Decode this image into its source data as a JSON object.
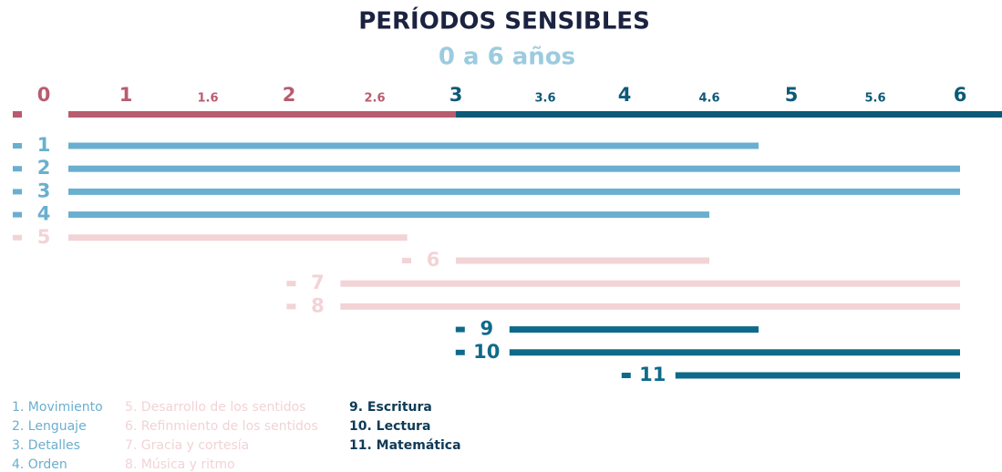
{
  "chart_data": {
    "type": "range-bar",
    "title": "PERÍODOS SENSIBLES",
    "subtitle": "0 a 6 años",
    "xlim": [
      0,
      6
    ],
    "xticks": [
      0,
      1,
      {
        "value": 1.5,
        "label": "1.6"
      },
      2,
      {
        "value": 2.5,
        "label": "2.6"
      },
      3,
      {
        "value": 3.5,
        "label": "3.6"
      },
      4,
      {
        "value": 4.5,
        "label": "4.6"
      },
      5,
      {
        "value": 5.5,
        "label": "5.6"
      },
      6
    ],
    "axis_colors": [
      "#b85c6e",
      "#0d5a78"
    ],
    "series": [
      {
        "label": "1",
        "name": "1. Movimiento",
        "color": "#6aafcf",
        "start": 0,
        "end": 4.8
      },
      {
        "label": "2",
        "name": "2. Lenguaje",
        "color": "#6aafcf",
        "start": 0,
        "end": 6
      },
      {
        "label": "3",
        "name": "3. Detalles",
        "color": "#6aafcf",
        "start": 0,
        "end": 6
      },
      {
        "label": "4",
        "name": "4. Orden",
        "color": "#6aafcf",
        "start": 0,
        "end": 4.5
      },
      {
        "label": "5",
        "name": "5. Desarrollo de los sentidos",
        "color": "#f2d3d6",
        "start": 0,
        "end": 2.7
      },
      {
        "label": "6",
        "name": "6. Refinmiento de los sentidos",
        "color": "#f2d3d6",
        "start": 3,
        "end": 4.5
      },
      {
        "label": "7",
        "name": "7. Gracia y cortesía",
        "color": "#f2d3d6",
        "start": 2.3,
        "end": 6
      },
      {
        "label": "8",
        "name": "8. Música y ritmo",
        "color": "#f2d3d6",
        "start": 2.3,
        "end": 6
      },
      {
        "label": "9",
        "name": "9. Escritura",
        "color": "#0e6a8a",
        "start": 3.3,
        "end": 4.8
      },
      {
        "label": "10",
        "name": "10. Lectura",
        "color": "#0e6a8a",
        "start": 3.3,
        "end": 6
      },
      {
        "label": "11",
        "name": "11. Matemática",
        "color": "#0e6a8a",
        "start": 4.3,
        "end": 6
      }
    ]
  }
}
